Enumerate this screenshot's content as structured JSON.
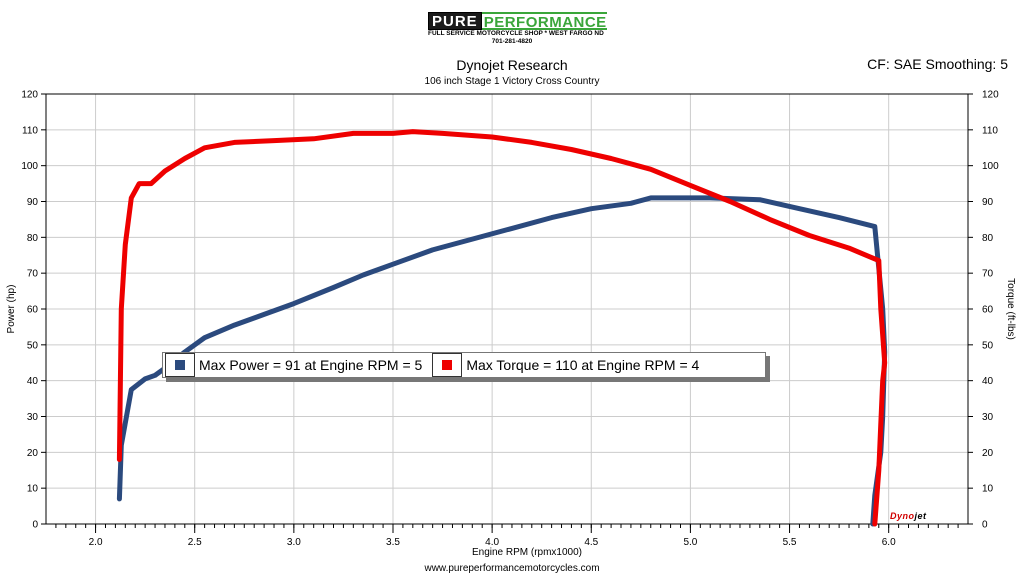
{
  "header": {
    "logo_word1": "PURE",
    "logo_word2": "PERFORMANCE",
    "logo_line1": "FULL SERVICE MOTORCYCLE SHOP * WEST FARGO ND",
    "logo_line2": "701-281-4820",
    "corner": "CF: SAE Smoothing: 5"
  },
  "footer": {
    "url": "www.pureperformancemotorcycles.com"
  },
  "brand": {
    "dynojet_a": "Dyno",
    "dynojet_b": "jet"
  },
  "legend": {
    "power": "Max Power = 91 at Engine RPM = 5",
    "torque": "Max Torque = 110 at Engine RPM = 4"
  },
  "colors": {
    "power": "#2b4a7e",
    "torque": "#ee0000",
    "grid": "#cccccc"
  },
  "chart_data": {
    "type": "line",
    "title": "Dynojet Research",
    "subtitle": "106 inch Stage 1 Victory Cross Country",
    "xlabel": "Engine RPM (rpmx1000)",
    "ylabel": "Power (hp)",
    "y2label": "Torque (ft-lbs)",
    "xlim": [
      1.75,
      6.4
    ],
    "ylim": [
      0,
      120
    ],
    "y2lim": [
      0,
      120
    ],
    "x_ticks": [
      2.0,
      2.5,
      3.0,
      3.5,
      4.0,
      4.5,
      5.0,
      5.5,
      6.0
    ],
    "x_tick_labels": [
      "2.0",
      "2.5",
      "3.0",
      "3.5",
      "4.0",
      "4.5",
      "5.0",
      "5.5",
      "6.0"
    ],
    "y_ticks": [
      0,
      10,
      20,
      30,
      40,
      50,
      60,
      70,
      80,
      90,
      100,
      110,
      120
    ],
    "grid": true,
    "legend_position": "center-left",
    "series": [
      {
        "name": "Power",
        "axis": "left",
        "points": [
          [
            2.12,
            7
          ],
          [
            2.13,
            22
          ],
          [
            2.18,
            37.5
          ],
          [
            2.25,
            40.5
          ],
          [
            2.3,
            41.5
          ],
          [
            2.35,
            43.5
          ],
          [
            2.45,
            48
          ],
          [
            2.55,
            52
          ],
          [
            2.7,
            55.5
          ],
          [
            2.85,
            58.5
          ],
          [
            3.0,
            61.5
          ],
          [
            3.2,
            66
          ],
          [
            3.35,
            69.5
          ],
          [
            3.5,
            72.5
          ],
          [
            3.7,
            76.5
          ],
          [
            3.9,
            79.5
          ],
          [
            4.1,
            82.5
          ],
          [
            4.3,
            85.5
          ],
          [
            4.5,
            88
          ],
          [
            4.7,
            89.5
          ],
          [
            4.8,
            91
          ],
          [
            5.0,
            91
          ],
          [
            5.1,
            91
          ],
          [
            5.35,
            90.5
          ],
          [
            5.55,
            88
          ],
          [
            5.75,
            85.5
          ],
          [
            5.93,
            83
          ],
          [
            5.97,
            60
          ],
          [
            5.98,
            48
          ],
          [
            5.97,
            30
          ],
          [
            5.96,
            20
          ],
          [
            5.93,
            8
          ],
          [
            5.92,
            0
          ]
        ]
      },
      {
        "name": "Torque",
        "axis": "right",
        "points": [
          [
            2.12,
            18
          ],
          [
            2.13,
            60
          ],
          [
            2.15,
            78
          ],
          [
            2.18,
            91
          ],
          [
            2.22,
            95
          ],
          [
            2.28,
            95
          ],
          [
            2.35,
            98.5
          ],
          [
            2.45,
            102
          ],
          [
            2.55,
            105
          ],
          [
            2.7,
            106.5
          ],
          [
            2.9,
            107
          ],
          [
            3.1,
            107.5
          ],
          [
            3.3,
            109
          ],
          [
            3.5,
            109
          ],
          [
            3.6,
            109.5
          ],
          [
            3.75,
            109
          ],
          [
            4.0,
            108
          ],
          [
            4.2,
            106.5
          ],
          [
            4.4,
            104.5
          ],
          [
            4.6,
            102
          ],
          [
            4.8,
            99
          ],
          [
            5.0,
            94.5
          ],
          [
            5.2,
            90
          ],
          [
            5.4,
            85
          ],
          [
            5.6,
            80.5
          ],
          [
            5.8,
            77
          ],
          [
            5.95,
            73.5
          ],
          [
            5.96,
            60
          ],
          [
            5.98,
            45
          ],
          [
            5.97,
            40
          ],
          [
            5.96,
            28
          ],
          [
            5.95,
            15
          ],
          [
            5.93,
            0
          ]
        ]
      }
    ]
  }
}
